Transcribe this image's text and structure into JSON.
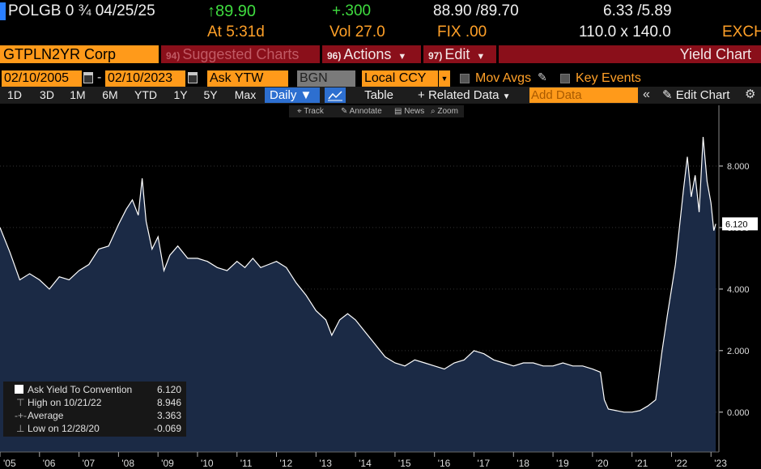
{
  "header": {
    "security": "POLGB 0 ¾ 04/25/25",
    "last_price": "↑89.90",
    "time": "At 5:31d",
    "change": "+.300",
    "volume": "Vol 27.0",
    "bid_ask": "88.90 /89.70",
    "fix": "FIX .00",
    "yields": "6.33 /5.89",
    "sizes": "110.0 x 140.0",
    "exch": "EXCH"
  },
  "toolbar": {
    "ticker": "GTPLN2YR Corp",
    "suggested_num": "94)",
    "suggested": "Suggested Charts",
    "actions_num": "96)",
    "actions": "Actions",
    "edit_num": "97)",
    "edit": "Edit",
    "title": "Yield Chart"
  },
  "settings": {
    "start_date": "02/10/2005",
    "dash": "-",
    "end_date": "02/10/2023",
    "field": "Ask YTW",
    "source": "BGN",
    "currency": "Local CCY",
    "mov_avgs": "Mov Avgs",
    "key_events": "Key Events"
  },
  "ranges": [
    "1D",
    "3D",
    "1M",
    "6M",
    "YTD",
    "1Y",
    "5Y",
    "Max"
  ],
  "period": "Daily",
  "table_label": "Table",
  "related": "Related Data",
  "add_data_placeholder": "Add Data",
  "edit_chart": "Edit Chart",
  "mini_tools": {
    "track": "Track",
    "annotate": "Annotate",
    "news": "News",
    "zoom": "Zoom"
  },
  "legend": {
    "series": "Ask Yield To Convention",
    "series_val": "6.120",
    "high_label": "High on 10/21/22",
    "high_val": "8.946",
    "avg_label": "Average",
    "avg_val": "3.363",
    "low_label": "Low on 12/28/20",
    "low_val": "-0.069"
  },
  "colors": {
    "accent_orange": "#ff9a1a",
    "area_fill": "#1b2a45",
    "line": "#ffffff",
    "dark_red": "#8a0f1a",
    "blue": "#2d6fd0"
  },
  "chart_data": {
    "type": "area",
    "title": "",
    "xlabel": "",
    "ylabel": "",
    "x_ticks": [
      "'05",
      "'06",
      "'07",
      "'08",
      "'09",
      "'10",
      "'11",
      "'12",
      "'13",
      "'14",
      "'15",
      "'16",
      "'17",
      "'18",
      "'19",
      "'20",
      "'21",
      "'22",
      "'23"
    ],
    "y_ticks": [
      "0.000",
      "2.000",
      "4.000",
      "6.000",
      "8.000"
    ],
    "ylim": [
      -0.9,
      9.5
    ],
    "xlim": [
      2005.0,
      2023.2
    ],
    "last_value_label": "6.120",
    "series": [
      {
        "name": "Ask Yield To Convention",
        "points": [
          [
            2005.0,
            6.0
          ],
          [
            2005.25,
            5.2
          ],
          [
            2005.5,
            4.3
          ],
          [
            2005.75,
            4.5
          ],
          [
            2006.0,
            4.3
          ],
          [
            2006.25,
            4.0
          ],
          [
            2006.5,
            4.4
          ],
          [
            2006.75,
            4.3
          ],
          [
            2007.0,
            4.6
          ],
          [
            2007.25,
            4.8
          ],
          [
            2007.5,
            5.3
          ],
          [
            2007.75,
            5.4
          ],
          [
            2008.0,
            6.1
          ],
          [
            2008.2,
            6.6
          ],
          [
            2008.35,
            6.9
          ],
          [
            2008.5,
            6.4
          ],
          [
            2008.6,
            7.6
          ],
          [
            2008.7,
            6.2
          ],
          [
            2008.85,
            5.3
          ],
          [
            2009.0,
            5.7
          ],
          [
            2009.15,
            4.6
          ],
          [
            2009.3,
            5.1
          ],
          [
            2009.5,
            5.4
          ],
          [
            2009.75,
            5.0
          ],
          [
            2010.0,
            5.0
          ],
          [
            2010.25,
            4.9
          ],
          [
            2010.5,
            4.7
          ],
          [
            2010.75,
            4.6
          ],
          [
            2011.0,
            4.9
          ],
          [
            2011.2,
            4.7
          ],
          [
            2011.4,
            5.0
          ],
          [
            2011.6,
            4.7
          ],
          [
            2011.8,
            4.8
          ],
          [
            2012.0,
            4.9
          ],
          [
            2012.25,
            4.7
          ],
          [
            2012.5,
            4.2
          ],
          [
            2012.75,
            3.8
          ],
          [
            2013.0,
            3.3
          ],
          [
            2013.25,
            3.0
          ],
          [
            2013.4,
            2.5
          ],
          [
            2013.6,
            3.0
          ],
          [
            2013.8,
            3.2
          ],
          [
            2014.0,
            3.0
          ],
          [
            2014.25,
            2.6
          ],
          [
            2014.5,
            2.2
          ],
          [
            2014.75,
            1.8
          ],
          [
            2015.0,
            1.6
          ],
          [
            2015.25,
            1.5
          ],
          [
            2015.5,
            1.7
          ],
          [
            2015.75,
            1.6
          ],
          [
            2016.0,
            1.5
          ],
          [
            2016.25,
            1.4
          ],
          [
            2016.5,
            1.6
          ],
          [
            2016.75,
            1.7
          ],
          [
            2017.0,
            2.0
          ],
          [
            2017.25,
            1.9
          ],
          [
            2017.5,
            1.7
          ],
          [
            2017.75,
            1.6
          ],
          [
            2018.0,
            1.5
          ],
          [
            2018.25,
            1.6
          ],
          [
            2018.5,
            1.6
          ],
          [
            2018.75,
            1.5
          ],
          [
            2019.0,
            1.5
          ],
          [
            2019.25,
            1.6
          ],
          [
            2019.5,
            1.5
          ],
          [
            2019.75,
            1.5
          ],
          [
            2020.0,
            1.4
          ],
          [
            2020.2,
            1.3
          ],
          [
            2020.3,
            0.4
          ],
          [
            2020.4,
            0.1
          ],
          [
            2020.6,
            0.05
          ],
          [
            2020.8,
            0.0
          ],
          [
            2021.0,
            0.0
          ],
          [
            2021.2,
            0.05
          ],
          [
            2021.4,
            0.2
          ],
          [
            2021.6,
            0.4
          ],
          [
            2021.75,
            1.9
          ],
          [
            2021.9,
            3.2
          ],
          [
            2022.0,
            4.0
          ],
          [
            2022.1,
            4.8
          ],
          [
            2022.2,
            6.0
          ],
          [
            2022.3,
            7.2
          ],
          [
            2022.4,
            8.3
          ],
          [
            2022.5,
            7.0
          ],
          [
            2022.6,
            7.7
          ],
          [
            2022.7,
            6.5
          ],
          [
            2022.8,
            8.946
          ],
          [
            2022.9,
            7.5
          ],
          [
            2023.0,
            6.8
          ],
          [
            2023.07,
            5.9
          ],
          [
            2023.12,
            6.12
          ]
        ]
      }
    ]
  }
}
